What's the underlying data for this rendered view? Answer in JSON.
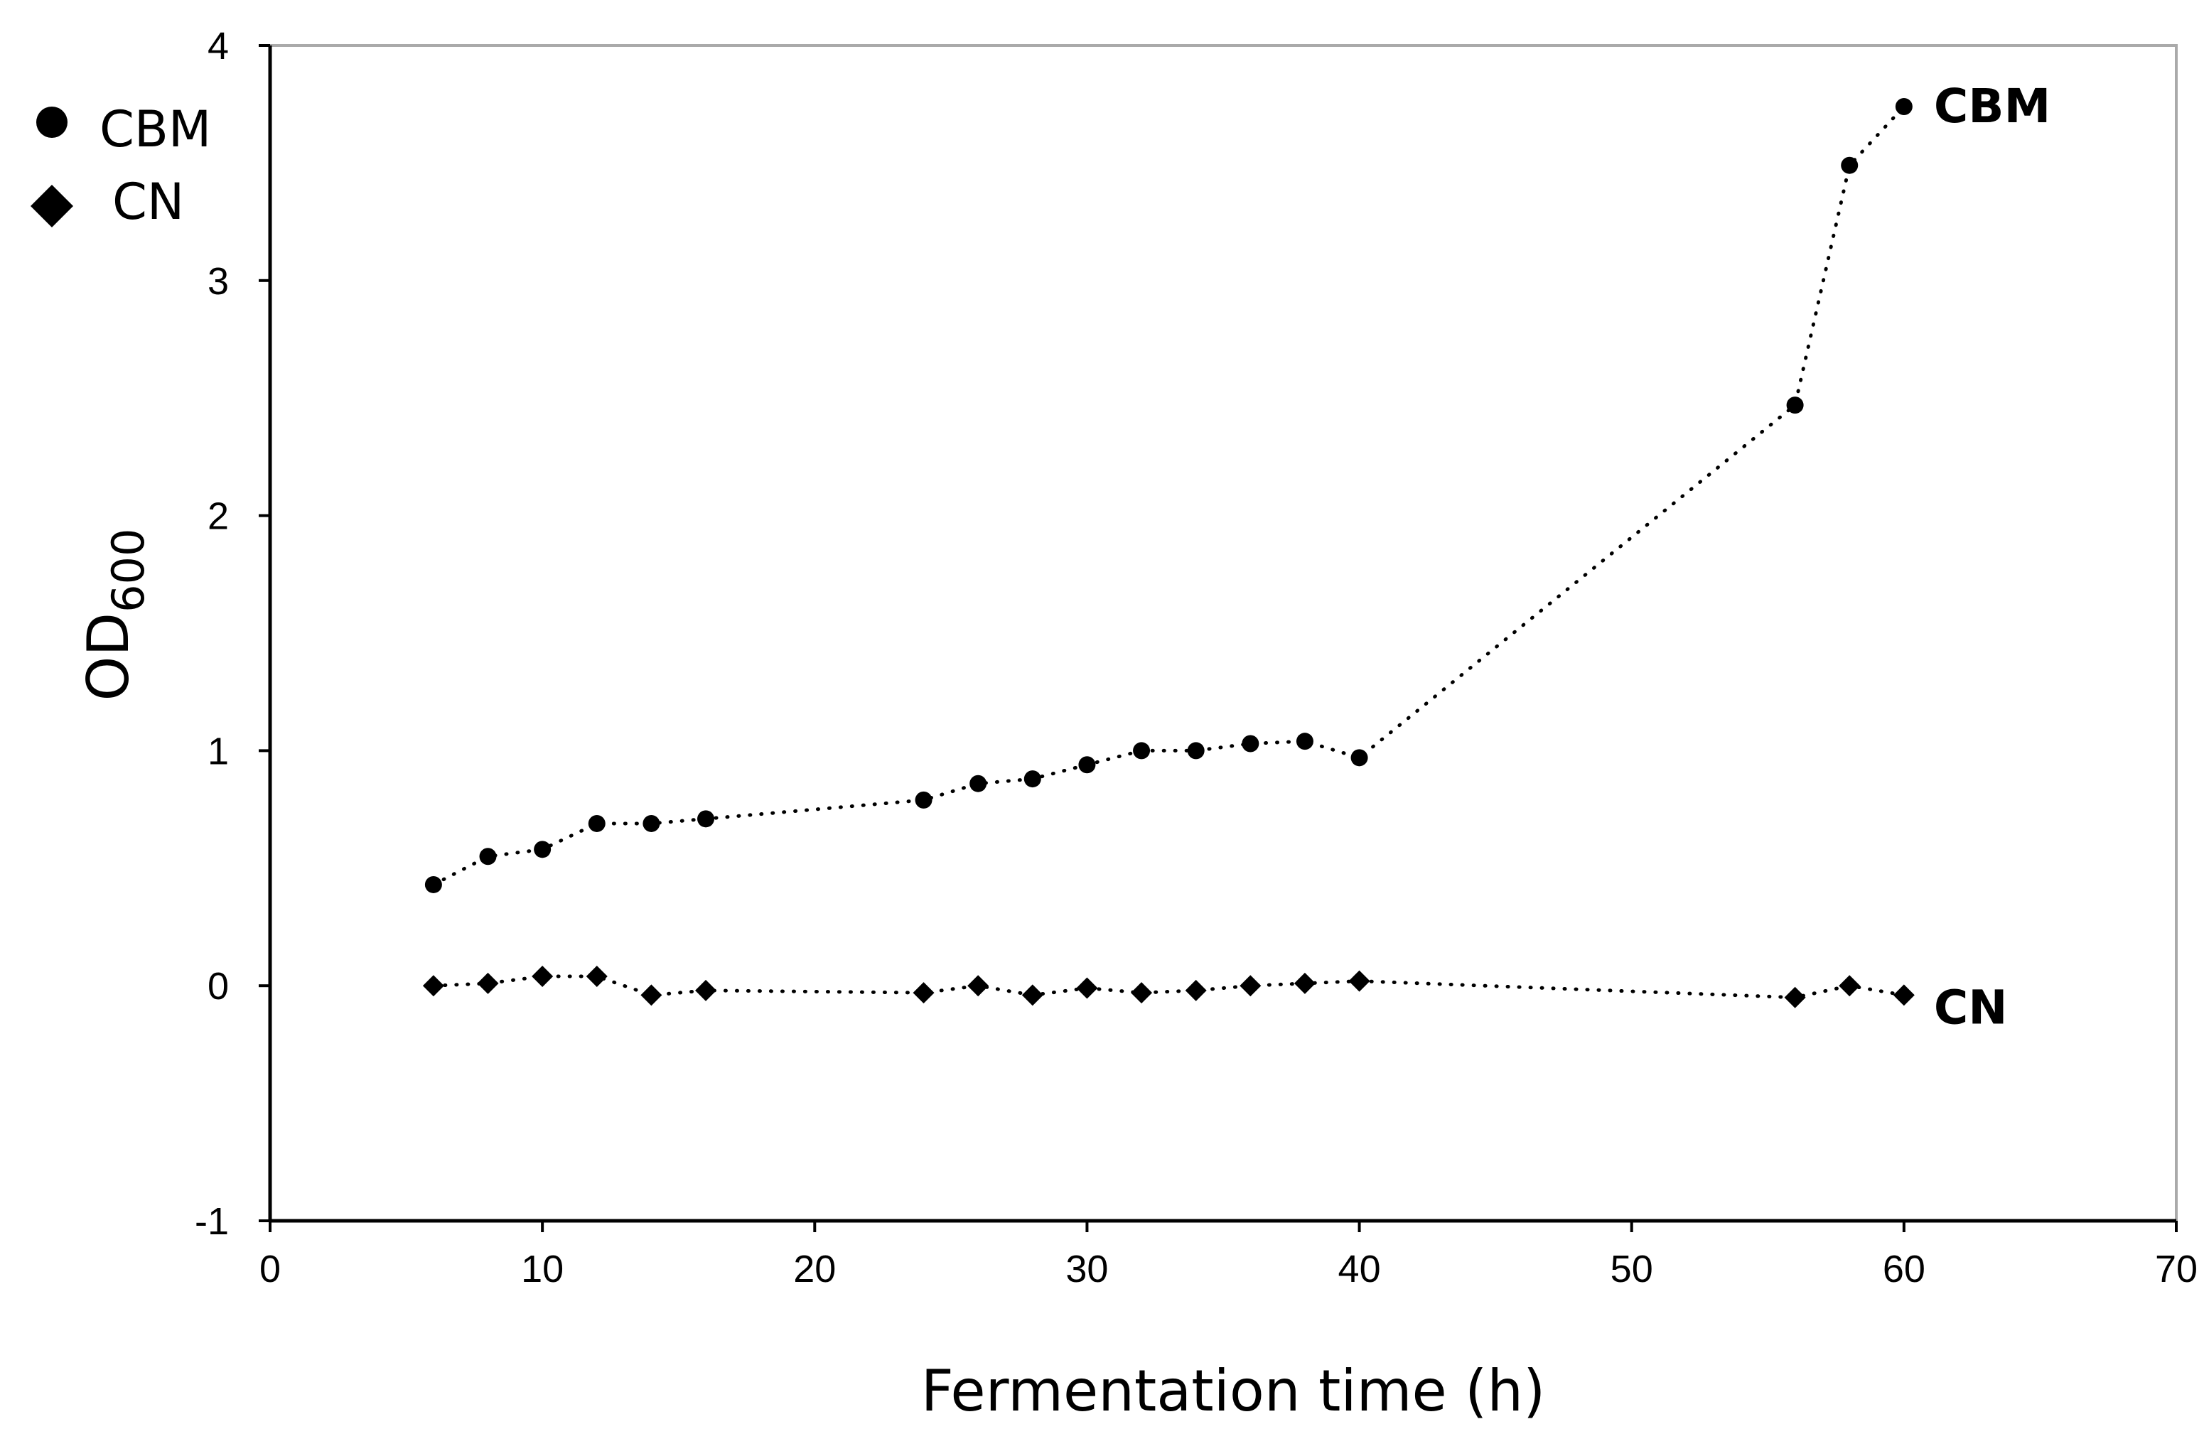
{
  "chart_data": {
    "type": "line",
    "title": "",
    "xlabel": "Fermentation time (h)",
    "ylabel_main": "OD",
    "ylabel_sub": "600",
    "xlim": [
      0,
      70
    ],
    "ylim": [
      -1,
      4
    ],
    "xticks": [
      0,
      10,
      20,
      30,
      40,
      50,
      60,
      70
    ],
    "yticks": [
      -1,
      0,
      1,
      2,
      3,
      4
    ],
    "legend": [
      {
        "name": "CBM",
        "marker": "circle"
      },
      {
        "name": "CN",
        "marker": "diamond"
      }
    ],
    "series": [
      {
        "name": "CBM",
        "marker": "circle",
        "end_label": "CBM",
        "x": [
          6,
          8,
          10,
          12,
          14,
          16,
          24,
          26,
          28,
          30,
          32,
          34,
          36,
          38,
          40,
          56,
          58,
          60
        ],
        "y": [
          0.43,
          0.55,
          0.58,
          0.69,
          0.69,
          0.71,
          0.79,
          0.86,
          0.88,
          0.94,
          1.0,
          1.0,
          1.03,
          1.04,
          0.97,
          2.47,
          3.49,
          3.74
        ]
      },
      {
        "name": "CN",
        "marker": "diamond",
        "end_label": "CN",
        "x": [
          6,
          8,
          10,
          12,
          14,
          16,
          24,
          26,
          28,
          30,
          32,
          34,
          36,
          38,
          40,
          56,
          58,
          60
        ],
        "y": [
          0.0,
          0.01,
          0.04,
          0.04,
          -0.04,
          -0.02,
          -0.03,
          0.0,
          -0.04,
          -0.01,
          -0.03,
          -0.02,
          0.0,
          0.01,
          0.02,
          -0.05,
          0.0,
          -0.04
        ]
      }
    ],
    "colors": {
      "line": "#000000",
      "marker": "#000000",
      "axis": "#000000",
      "frame": "#aaaaaa"
    }
  }
}
